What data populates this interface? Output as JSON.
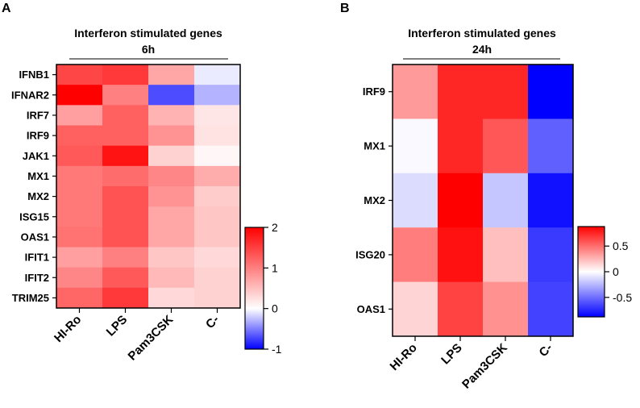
{
  "chart_data": [
    {
      "type": "heatmap",
      "panel_label": "A",
      "title": "Interferon stimulated genes",
      "subtitle": "6h",
      "categories": [
        "HI-Ro",
        "LPS",
        "Pam3CSK",
        "C-"
      ],
      "rows": [
        "IFNB1",
        "IFNAR2",
        "IRF7",
        "IRF9",
        "JAK1",
        "MX1",
        "MX2",
        "ISG15",
        "OAS1",
        "IFIT1",
        "IFIT2",
        "TRIM25"
      ],
      "values": [
        [
          1.45,
          1.55,
          0.7,
          -0.08
        ],
        [
          2.05,
          1.0,
          -0.7,
          -0.3
        ],
        [
          0.75,
          1.25,
          0.6,
          0.2
        ],
        [
          1.25,
          1.25,
          0.85,
          0.22
        ],
        [
          1.3,
          1.85,
          0.35,
          0.06
        ],
        [
          1.05,
          1.15,
          0.95,
          0.65
        ],
        [
          1.05,
          1.35,
          0.85,
          0.4
        ],
        [
          1.05,
          1.35,
          0.7,
          0.45
        ],
        [
          1.1,
          1.35,
          0.7,
          0.45
        ],
        [
          0.75,
          1.0,
          0.45,
          0.3
        ],
        [
          0.95,
          1.3,
          0.55,
          0.35
        ],
        [
          1.2,
          1.55,
          0.3,
          0.35
        ]
      ],
      "colorbar": {
        "min": -1,
        "max": 2,
        "ticks": [
          "-1",
          "0",
          "1",
          "2"
        ]
      },
      "colors": {
        "low": "#0000ff",
        "mid": "#ffffff",
        "high": "#ff0000"
      }
    },
    {
      "type": "heatmap",
      "panel_label": "B",
      "title": "Interferon stimulated genes",
      "subtitle": "24h",
      "categories": [
        "HI-Ro",
        "LPS",
        "Pam3CSK",
        "C-"
      ],
      "rows": [
        "IRF9",
        "MX1",
        "MX2",
        "ISG20",
        "OAS1"
      ],
      "values": [
        [
          0.35,
          0.75,
          0.75,
          -0.88
        ],
        [
          -0.02,
          0.75,
          0.58,
          -0.55
        ],
        [
          -0.12,
          0.88,
          -0.2,
          -0.82
        ],
        [
          0.45,
          0.82,
          0.22,
          -0.68
        ],
        [
          0.15,
          0.65,
          0.38,
          -0.65
        ]
      ],
      "colorbar": {
        "min": -0.88,
        "max": 0.88,
        "ticks": [
          "0.5",
          "0",
          "-0.5"
        ],
        "tick_values": [
          0.5,
          0,
          -0.5
        ]
      },
      "colors": {
        "low": "#0000ff",
        "mid": "#ffffff",
        "high": "#ff0000"
      }
    }
  ]
}
